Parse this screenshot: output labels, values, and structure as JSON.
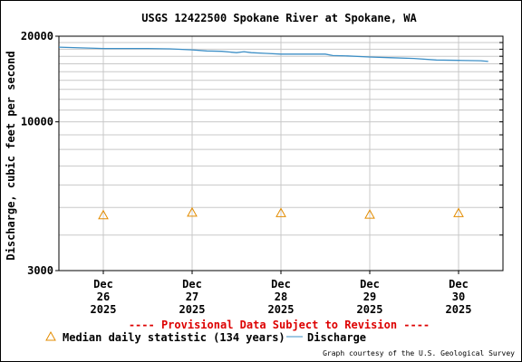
{
  "chart_data": {
    "type": "line",
    "title": "USGS 12422500 Spokane River at Spokane, WA",
    "ylabel": "Discharge, cubic feet per second",
    "xlabel": "",
    "y_scale": "log",
    "ylim": [
      3000,
      20000
    ],
    "y_ticks_labeled": [
      "20000",
      "10000",
      "3000"
    ],
    "x_ticks": [
      {
        "month": "Dec",
        "day": "26",
        "year": "2025",
        "at": "2025-12-26T00:00"
      },
      {
        "month": "Dec",
        "day": "27",
        "year": "2025",
        "at": "2025-12-27T00:00"
      },
      {
        "month": "Dec",
        "day": "28",
        "year": "2025",
        "at": "2025-12-28T00:00"
      },
      {
        "month": "Dec",
        "day": "29",
        "year": "2025",
        "at": "2025-12-29T00:00"
      },
      {
        "month": "Dec",
        "day": "30",
        "year": "2025",
        "at": "2025-12-30T00:00"
      }
    ],
    "xlim": [
      "2025-12-25T12:00",
      "2025-12-30T12:00"
    ],
    "series": [
      {
        "name": "Discharge",
        "color": "#3d8fc6",
        "x": [
          "2025-12-25T12:00",
          "2025-12-25T18:00",
          "2025-12-26T00:00",
          "2025-12-26T06:00",
          "2025-12-26T12:00",
          "2025-12-26T18:00",
          "2025-12-27T00:00",
          "2025-12-27T04:00",
          "2025-12-27T08:00",
          "2025-12-27T12:00",
          "2025-12-27T14:00",
          "2025-12-27T16:00",
          "2025-12-27T20:00",
          "2025-12-28T00:00",
          "2025-12-28T06:00",
          "2025-12-28T12:00",
          "2025-12-28T14:00",
          "2025-12-28T18:00",
          "2025-12-29T00:00",
          "2025-12-29T06:00",
          "2025-12-29T12:00",
          "2025-12-29T18:00",
          "2025-12-30T00:00",
          "2025-12-30T06:00",
          "2025-12-30T08:00"
        ],
        "values": [
          18300,
          18200,
          18100,
          18100,
          18100,
          18050,
          17900,
          17750,
          17700,
          17500,
          17650,
          17500,
          17400,
          17300,
          17300,
          17300,
          17100,
          17050,
          16900,
          16800,
          16700,
          16500,
          16450,
          16400,
          16300
        ]
      },
      {
        "name": "Median daily statistic (134 years)",
        "color": "#e38c00",
        "marker": "triangle",
        "x": [
          "2025-12-26T00:00",
          "2025-12-27T00:00",
          "2025-12-28T00:00",
          "2025-12-29T00:00",
          "2025-12-30T00:00"
        ],
        "values": [
          4700,
          4800,
          4780,
          4720,
          4780
        ]
      }
    ],
    "grid": true,
    "legend_placement": "bottom",
    "provisional_note": "---- Provisional Data Subject to Revision ----",
    "credit": "Graph courtesy of the U.S. Geological Survey"
  }
}
